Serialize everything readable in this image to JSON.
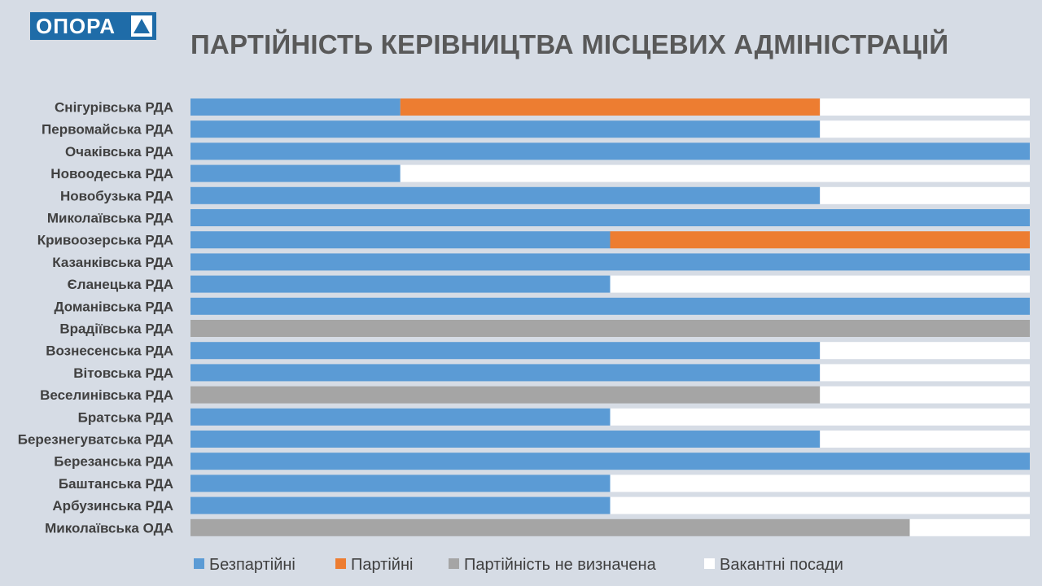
{
  "brand": {
    "logo_text": "ОПОРА"
  },
  "chart_data": {
    "type": "bar",
    "orientation": "horizontal",
    "stacked": "100%",
    "title": "ПАРТІЙНІСТЬ КЕРІВНИЦТВА МІСЦЕВИХ АДМІНІСТРАЦІЙ",
    "categories": [
      "Снігурівська  РДА",
      "Первомайська РДА",
      "Очаківська  РДА",
      "Новоодеська  РДА",
      "Новобузька  РДА",
      "Миколаївська РДА",
      "Кривоозерська РДА",
      "Казанківська  РДА",
      "Єланецька  РДА",
      "Доманівська  РДА",
      "Врадіївська  РДА",
      "Вознесенська  РДА",
      "Вітовська  РДА",
      "Веселинівська РДА",
      "Братська  РДА",
      "Березнегуватська РДА",
      "Березанська  РДА",
      "Баштанська  РДА",
      "Арбузинська РДА",
      "Миколаївська  ОДА"
    ],
    "series": [
      {
        "name": "Безпартійні",
        "color": "#5b9bd5",
        "values": [
          0.25,
          0.75,
          1,
          0.25,
          0.75,
          1,
          0.5,
          1,
          0.5,
          1,
          0,
          0.75,
          0.75,
          0,
          0.5,
          0.75,
          1,
          0.5,
          0.5,
          0
        ]
      },
      {
        "name": "Партійні",
        "color": "#ed7d31",
        "values": [
          0.5,
          0,
          0,
          0,
          0,
          0,
          0.5,
          0,
          0,
          0,
          0,
          0,
          0,
          0,
          0,
          0,
          0,
          0,
          0,
          0
        ]
      },
      {
        "name": "Партійність не визначена",
        "color": "#a5a5a5",
        "values": [
          0,
          0,
          0,
          0,
          0,
          0,
          0,
          0,
          0,
          0,
          1,
          0,
          0,
          0.75,
          0,
          0,
          0,
          0,
          0,
          0.857
        ]
      },
      {
        "name": "Вакантні посади",
        "color": "#ffffff",
        "values": [
          0.25,
          0.25,
          0,
          0.75,
          0.25,
          0,
          0,
          0,
          0.5,
          0,
          0,
          0.25,
          0.25,
          0.25,
          0.5,
          0.25,
          0,
          0.5,
          0.5,
          0.143
        ]
      }
    ],
    "xlim": [
      0,
      1
    ],
    "grid": false,
    "legend_position": "bottom"
  }
}
